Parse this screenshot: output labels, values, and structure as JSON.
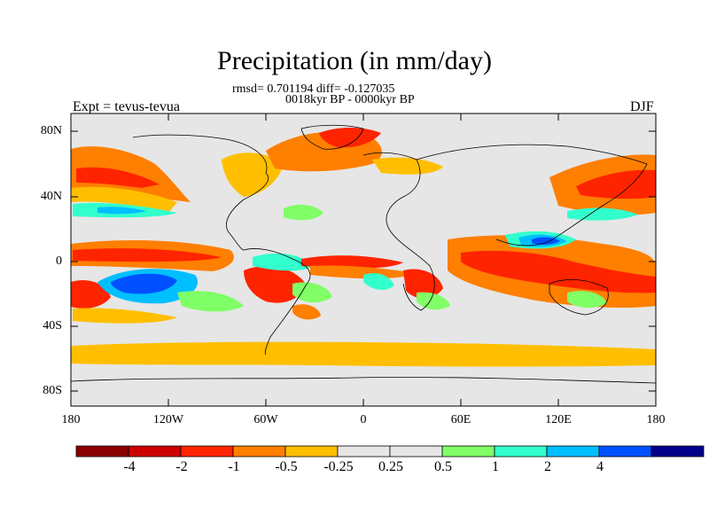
{
  "title": "Precipitation (in mm/day)",
  "stats": "rmsd= 0.701194 diff= -0.127035",
  "period": "0018kyr BP - 0000kyr BP",
  "experiment": "Expt = tevus-tevua",
  "season": "DJF",
  "y_ticks": [
    "80N",
    "40N",
    "0",
    "40S",
    "80S"
  ],
  "x_ticks": [
    "180",
    "120W",
    "60W",
    "0",
    "60E",
    "120E",
    "180"
  ],
  "colorbar": {
    "colors": [
      "#8b0000",
      "#cd0000",
      "#ff2400",
      "#ff7f00",
      "#ffbf00",
      "#e6e6e6",
      "#e6e6e6",
      "#80ff66",
      "#33ffcc",
      "#00bfff",
      "#0050ff",
      "#00008b"
    ],
    "labels": [
      "-4",
      "-2",
      "-1",
      "-0.5",
      "-0.25",
      "0.25",
      "0.5",
      "1",
      "2",
      "4"
    ]
  },
  "palette": {
    "background": "#e6e6e6",
    "dark_red": "#cd0000",
    "red": "#ff2400",
    "orange": "#ff7f00",
    "yellow_orange": "#ffbf00",
    "light_green": "#80ff66",
    "cyan": "#33ffcc",
    "light_blue": "#00bfff",
    "blue": "#0050ff",
    "navy": "#00008b"
  }
}
